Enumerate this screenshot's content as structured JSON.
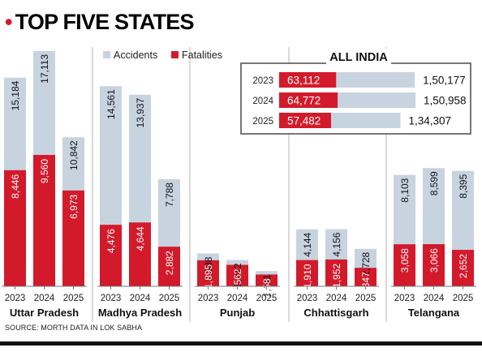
{
  "header": {
    "title": "TOP FIVE STATES"
  },
  "source": "SOURCE: MORTH DATA IN LOK SABHA",
  "colors": {
    "accidents": "#c8d3e0",
    "fatalities": "#d31a2b",
    "divider": "#b5b5b5",
    "axis": "#777777"
  },
  "chart_data": [
    {
      "type": "bar",
      "stacked": true,
      "title": "TOP FIVE STATES",
      "legend": [
        "Accidents",
        "Fatalities"
      ],
      "legend_position": "top",
      "note": "Fatalities bar overlaid at the base of each accidents bar",
      "groups": [
        {
          "name": "Uttar Pradesh",
          "years": [
            "2023",
            "2024",
            "2025"
          ],
          "accidents": [
            15184,
            17113,
            10842
          ],
          "fatalities": [
            8446,
            9560,
            6973
          ],
          "accidents_labels": [
            "15,184",
            "17,113",
            "10,842"
          ],
          "fatalities_labels": [
            "8,446",
            "9,560",
            "6,973"
          ]
        },
        {
          "name": "Madhya Pradesh",
          "years": [
            "2023",
            "2024",
            "2025"
          ],
          "accidents": [
            14561,
            13937,
            7788
          ],
          "fatalities": [
            4476,
            4644,
            2882
          ],
          "accidents_labels": [
            "14,561",
            "13,937",
            "7,788"
          ],
          "fatalities_labels": [
            "4,476",
            "4,644",
            "2,882"
          ]
        },
        {
          "name": "Punjab",
          "years": [
            "2023",
            "2024",
            "2025"
          ],
          "accidents": [
            2388,
            1912,
            1111
          ],
          "fatalities": [
            1895,
            1562,
            858
          ],
          "accidents_labels": [
            "2,388",
            "1,912",
            "1,111"
          ],
          "fatalities_labels": [
            "1,895",
            "1,562",
            "858"
          ]
        },
        {
          "name": "Chhattisgarh",
          "years": [
            "2023",
            "2024",
            "2025"
          ],
          "accidents": [
            4144,
            4156,
            2728
          ],
          "fatalities": [
            1910,
            1952,
            1347
          ],
          "accidents_labels": [
            "4,144",
            "4,156",
            "2,728"
          ],
          "fatalities_labels": [
            "1,910",
            "1,952",
            "1,347"
          ]
        },
        {
          "name": "Telangana",
          "years": [
            "2023",
            "2024",
            "2025"
          ],
          "accidents": [
            8103,
            8599,
            8395
          ],
          "fatalities": [
            3058,
            3066,
            2652
          ],
          "accidents_labels": [
            "8,103",
            "8,599",
            "8,395"
          ],
          "fatalities_labels": [
            "3,058",
            "3,066",
            "2,652"
          ]
        }
      ]
    },
    {
      "type": "bar",
      "orientation": "horizontal",
      "title": "ALL INDIA",
      "categories": [
        "2023",
        "2024",
        "2025"
      ],
      "accidents": [
        150177,
        150958,
        134307
      ],
      "fatalities": [
        63112,
        64772,
        57482
      ],
      "accidents_labels": [
        "1,50,177",
        "1,50,958",
        "1,34,307"
      ],
      "fatalities_labels": [
        "63,112",
        "64,772",
        "57,482"
      ]
    }
  ]
}
